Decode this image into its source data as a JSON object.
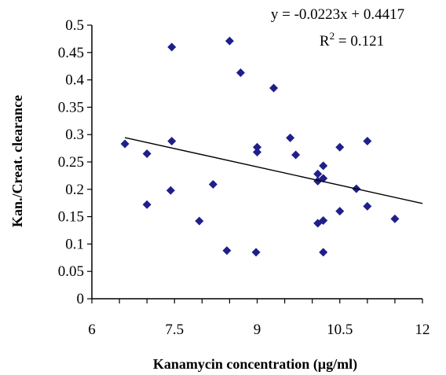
{
  "chart_data": {
    "type": "scatter",
    "xlabel": "Kanamycin concentration (µg/ml)",
    "ylabel": "Kan./Creat. clearance",
    "xlim": [
      6,
      12
    ],
    "ylim": [
      0,
      0.5
    ],
    "x_ticks": [
      "6",
      "7.5",
      "9",
      "10.5",
      "12"
    ],
    "x_tick_values": [
      6,
      7.5,
      9,
      10.5,
      12
    ],
    "y_ticks": [
      "0",
      "0.05",
      "0.1",
      "0.15",
      "0.2",
      "0.25",
      "0.3",
      "0.35",
      "0.4",
      "0.45",
      "0.5"
    ],
    "y_tick_values": [
      0,
      0.05,
      0.1,
      0.15,
      0.2,
      0.25,
      0.3,
      0.35,
      0.4,
      0.45,
      0.5
    ],
    "grid": false,
    "marker_color": "#1f1f8c",
    "points": [
      {
        "x": 6.6,
        "y": 0.283
      },
      {
        "x": 7.0,
        "y": 0.265
      },
      {
        "x": 7.0,
        "y": 0.172
      },
      {
        "x": 7.45,
        "y": 0.46
      },
      {
        "x": 7.45,
        "y": 0.288
      },
      {
        "x": 7.43,
        "y": 0.198
      },
      {
        "x": 7.95,
        "y": 0.142
      },
      {
        "x": 8.2,
        "y": 0.209
      },
      {
        "x": 8.45,
        "y": 0.088
      },
      {
        "x": 8.5,
        "y": 0.471
      },
      {
        "x": 8.7,
        "y": 0.413
      },
      {
        "x": 9.0,
        "y": 0.277
      },
      {
        "x": 9.0,
        "y": 0.268
      },
      {
        "x": 8.98,
        "y": 0.085
      },
      {
        "x": 9.3,
        "y": 0.385
      },
      {
        "x": 9.6,
        "y": 0.294
      },
      {
        "x": 9.7,
        "y": 0.263
      },
      {
        "x": 10.1,
        "y": 0.228
      },
      {
        "x": 10.1,
        "y": 0.215
      },
      {
        "x": 10.2,
        "y": 0.243
      },
      {
        "x": 10.2,
        "y": 0.22
      },
      {
        "x": 10.1,
        "y": 0.138
      },
      {
        "x": 10.2,
        "y": 0.143
      },
      {
        "x": 10.2,
        "y": 0.085
      },
      {
        "x": 10.5,
        "y": 0.277
      },
      {
        "x": 10.5,
        "y": 0.16
      },
      {
        "x": 10.8,
        "y": 0.201
      },
      {
        "x": 11.0,
        "y": 0.288
      },
      {
        "x": 11.0,
        "y": 0.169
      },
      {
        "x": 11.5,
        "y": 0.146
      }
    ],
    "trendline": {
      "slope": -0.0223,
      "intercept": 0.4417,
      "x_range": [
        6.6,
        12
      ],
      "equation_text": "y = -0.0223x + 0.4417",
      "r2_prefix": "R",
      "r2_sup": "2",
      "r2_suffix": " = 0.121"
    }
  }
}
